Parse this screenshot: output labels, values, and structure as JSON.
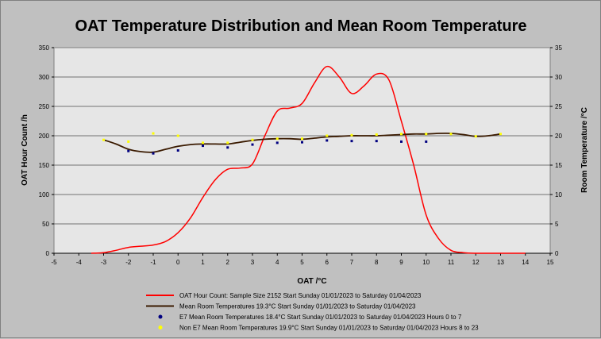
{
  "chart_data": {
    "type": "line",
    "title": "OAT Temperature Distribution and Mean Room Temperature",
    "xlabel": "OAT /°C",
    "ylabel": "OAT Hour Count /h",
    "y2label": "Room Temperature /°C",
    "xlim": [
      -5,
      15
    ],
    "ylim": [
      0,
      350
    ],
    "y2lim": [
      0,
      35
    ],
    "x_ticks": [
      "-5",
      "-4",
      "-3",
      "-2",
      "-1",
      "0",
      "1",
      "2",
      "3",
      "4",
      "5",
      "6",
      "7",
      "8",
      "9",
      "10",
      "11",
      "12",
      "13",
      "14",
      "15"
    ],
    "y_ticks": [
      "0",
      "50",
      "100",
      "150",
      "200",
      "250",
      "300",
      "350"
    ],
    "y2_ticks": [
      "0",
      "5",
      "10",
      "15",
      "20",
      "25",
      "30",
      "35"
    ],
    "grid": true,
    "legend_position": "bottom",
    "colors": {
      "hour_count": "#ff0000",
      "mean_room": "#3a1a00",
      "e7": "#000080",
      "non_e7": "#ffff00",
      "plot_bg": "#e6e6e6",
      "background": "#c0c0c0"
    },
    "series": [
      {
        "name": "OAT Hour Count: Sample Size 2152 Start Sunday 01/01/2023 to Saturday 01/04/2023",
        "axis": "left",
        "style": "line",
        "x": [
          -3.5,
          -3,
          -2.5,
          -2,
          -1.5,
          -1,
          -0.5,
          0,
          0.5,
          1,
          1.5,
          2,
          2.5,
          3,
          3.5,
          4,
          4.5,
          5,
          5.5,
          6,
          6.5,
          7,
          7.5,
          8,
          8.5,
          9,
          9.5,
          10,
          10.5,
          11,
          11.5,
          12,
          13,
          14
        ],
        "values": [
          0,
          1,
          5,
          10,
          12,
          14,
          20,
          35,
          60,
          95,
          125,
          143,
          145,
          152,
          200,
          242,
          247,
          255,
          290,
          318,
          300,
          272,
          285,
          305,
          295,
          225,
          150,
          65,
          25,
          5,
          1,
          0,
          0,
          0
        ]
      },
      {
        "name": "Mean Room Temperatures 19.3°C Start Sunday 01/01/2023 to Saturday 01/04/2023",
        "axis": "right",
        "style": "line",
        "x": [
          -3,
          -2.5,
          -2,
          -1.5,
          -1,
          -0.5,
          0,
          0.5,
          1,
          1.5,
          2,
          2.5,
          3,
          3.5,
          4,
          4.5,
          5,
          5.5,
          6,
          6.5,
          7,
          7.5,
          8,
          8.5,
          9,
          9.5,
          10,
          10.5,
          11,
          11.5,
          12,
          12.5,
          13
        ],
        "values": [
          19.3,
          18.6,
          17.7,
          17.3,
          17.2,
          17.7,
          18.2,
          18.5,
          18.6,
          18.6,
          18.6,
          18.9,
          19.2,
          19.4,
          19.5,
          19.5,
          19.4,
          19.6,
          19.8,
          19.9,
          20.0,
          20.0,
          20.0,
          20.1,
          20.2,
          20.3,
          20.3,
          20.4,
          20.4,
          20.2,
          19.9,
          20.0,
          20.3
        ]
      },
      {
        "name": "E7 Mean Room Temperatures 18.4°C Start Sunday 01/01/2023 to Saturday 01/04/2023 Hours 0 to 7",
        "axis": "right",
        "style": "points",
        "x": [
          -2,
          -1,
          0,
          1,
          2,
          3,
          4,
          5,
          6,
          7,
          8,
          9,
          10
        ],
        "values": [
          17.4,
          17.0,
          17.5,
          18.3,
          18.0,
          18.5,
          18.8,
          18.9,
          19.2,
          19.1,
          19.1,
          19.0,
          19.0
        ]
      },
      {
        "name": "Non E7 Mean Room Temperatures 19.9°C Start Sunday 01/01/2023 to Saturday 01/04/2023 Hours 8 to 23",
        "axis": "right",
        "style": "points",
        "x": [
          -3,
          -2,
          -1,
          0,
          1,
          2,
          3,
          4,
          5,
          6,
          7,
          8,
          9,
          10,
          11,
          12,
          13
        ],
        "values": [
          19.3,
          19.0,
          20.4,
          20.0,
          18.8,
          18.8,
          19.3,
          19.5,
          19.5,
          20.0,
          20.1,
          20.2,
          20.3,
          20.3,
          20.3,
          19.9,
          20.3
        ]
      }
    ]
  }
}
